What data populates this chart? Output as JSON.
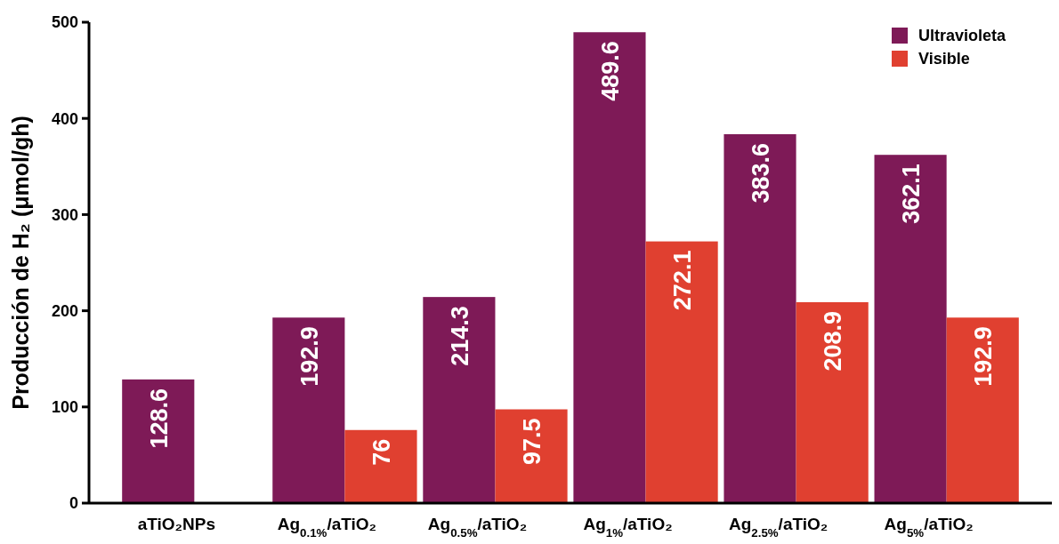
{
  "chart_data": {
    "type": "bar",
    "ylabel": "Producción de H₂ (μmol/gh)",
    "categories": [
      "aTiO₂NPs",
      "Ag$_{0.1%}$/aTiO₂",
      "Ag$_{0.5%}$/aTiO₂",
      "Ag$_{1%}$/aTiO₂",
      "Ag$_{2.5%}$/aTiO₂",
      "Ag$_{5%}$/aTiO₂"
    ],
    "series": [
      {
        "name": "Ultravioleta",
        "color": "#7e1a57",
        "values": [
          128.6,
          192.9,
          214.3,
          489.6,
          383.6,
          362.1
        ]
      },
      {
        "name": "Visible",
        "color": "#e04030",
        "values": [
          null,
          76,
          97.5,
          272.1,
          208.9,
          192.9
        ]
      }
    ],
    "ylim": [
      0,
      500
    ],
    "yticks": [
      0,
      100,
      200,
      300,
      400,
      500
    ],
    "data_labels": true,
    "legend": "top right",
    "grid": false
  }
}
